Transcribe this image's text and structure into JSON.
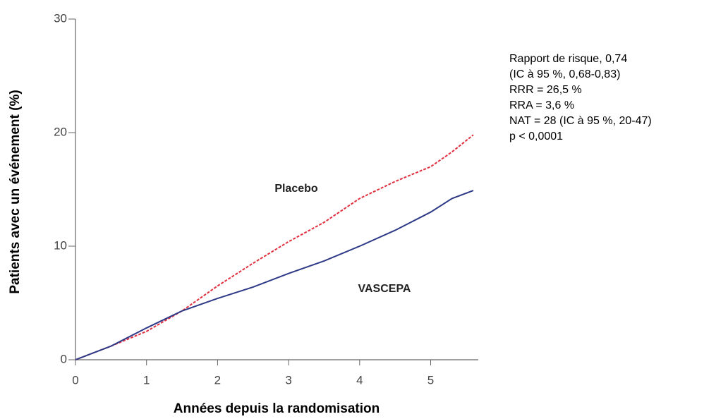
{
  "chart_data": {
    "type": "line",
    "x_label": "Années depuis la randomisation",
    "y_label": "Patients avec un événement (%)",
    "x": [
      0,
      0.5,
      1,
      1.5,
      2,
      2.5,
      3,
      3.5,
      4,
      4.5,
      5,
      5.3,
      5.6
    ],
    "series": [
      {
        "name": "Placebo",
        "color": "#e0303f",
        "dashed": true,
        "values": [
          0,
          1.2,
          2.5,
          4.3,
          6.5,
          8.5,
          10.4,
          12.1,
          14.2,
          15.7,
          17,
          18.3,
          19.8
        ]
      },
      {
        "name": "VASCEPA",
        "color": "#2e3a87",
        "dashed": false,
        "values": [
          0,
          1.2,
          2.8,
          4.3,
          5.4,
          6.4,
          7.6,
          8.7,
          10,
          11.4,
          13,
          14.2,
          14.9
        ]
      }
    ],
    "xlim": [
      0,
      5.67
    ],
    "ylim": [
      0,
      30
    ],
    "xticks": [
      0,
      1,
      2,
      3,
      4,
      5
    ],
    "yticks": [
      0,
      10,
      20,
      30
    ],
    "grid": false,
    "annotations": [
      "Rapport de risque, 0,74",
      "(IC à 95 %, 0,68-0,83)",
      "RRR = 26,5 %",
      "RRA = 3,6 %",
      "NAT = 28 (IC à 95 %, 20-47)",
      "p < 0,0001"
    ]
  }
}
